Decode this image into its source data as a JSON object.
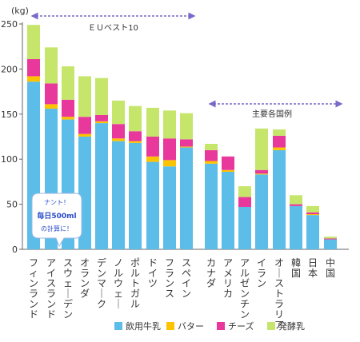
{
  "chart_data": {
    "type": "bar",
    "stacked": true,
    "ylabel": "(kg)",
    "ylim": [
      0,
      250
    ],
    "yticks": [
      0,
      50,
      100,
      150,
      200,
      250
    ],
    "grid": false,
    "legend_position": "bottom",
    "categories": [
      "フィンランド",
      "アイスランド",
      "スウェーデン",
      "オランダ",
      "デンマーク",
      "ノルウェー",
      "ポルトガル",
      "ドイツ",
      "フランス",
      "スペイン",
      "カナダ",
      "アメリカ",
      "アルゼンチン",
      "イラン",
      "オーストラリア",
      "韓国",
      "日本",
      "中国"
    ],
    "series": [
      {
        "name": "飲用牛乳",
        "color": "#5bbde8",
        "values": [
          186,
          156,
          144,
          125,
          140,
          120,
          118,
          97,
          92,
          113,
          95,
          86,
          47,
          83,
          110,
          48,
          38,
          11
        ]
      },
      {
        "name": "バター",
        "color": "#fcc300",
        "values": [
          6,
          5,
          3,
          3,
          2,
          3,
          2,
          6,
          7,
          1,
          3,
          2,
          0,
          1,
          3,
          0,
          1,
          0
        ]
      },
      {
        "name": "チーズ",
        "color": "#e8389c",
        "values": [
          19,
          23,
          19,
          19,
          7,
          16,
          11,
          22,
          24,
          8,
          12,
          15,
          11,
          4,
          13,
          2,
          2,
          1
        ]
      },
      {
        "name": "発酵乳",
        "color": "#c5e66a",
        "values": [
          38,
          40,
          37,
          45,
          41,
          26,
          28,
          32,
          31,
          29,
          7,
          0,
          12,
          46,
          7,
          10,
          7,
          2
        ]
      }
    ],
    "annotations": {
      "eu_label": "ＥＵベスト10",
      "other_label": "主要各国例",
      "bubble_lines": [
        "ナント！",
        "毎日500ml",
        "の計算に！"
      ]
    }
  }
}
